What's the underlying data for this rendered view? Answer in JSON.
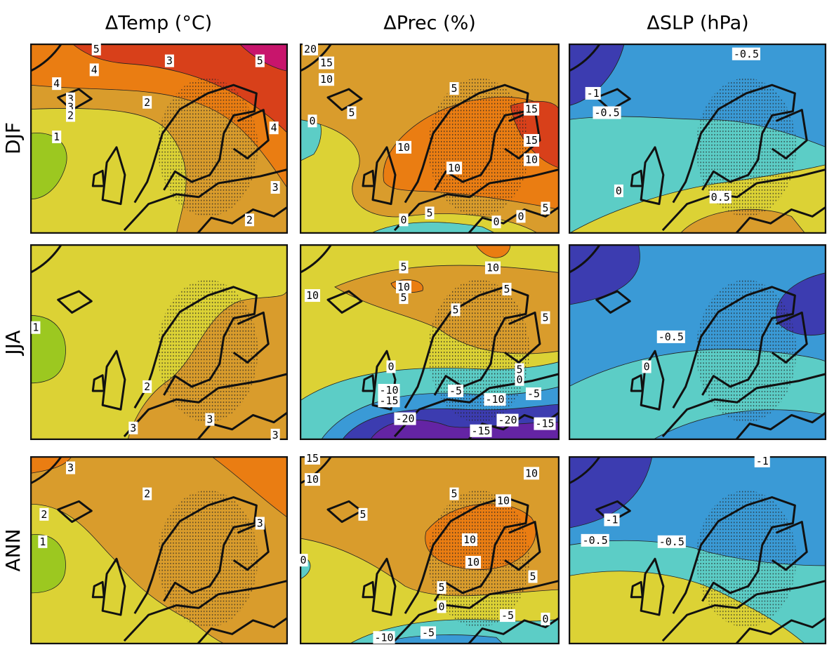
{
  "columns": [
    "ΔTemp (°C)",
    "ΔPrec (%)",
    "ΔSLP (hPa)"
  ],
  "rows": [
    "DJF",
    "JJA",
    "ANN"
  ],
  "panels": [
    [
      [
        "5",
        "3",
        "5",
        "4",
        "4",
        "3",
        "3",
        "2",
        "2",
        "1",
        "4",
        "3",
        "2"
      ],
      [
        "20",
        "15",
        "10",
        "5",
        "5",
        "0",
        "15",
        "10",
        "15",
        "10",
        "10",
        "0",
        "5",
        "0",
        "0",
        "5"
      ],
      [
        "-0.5",
        "-1",
        "-0.5",
        "0",
        "0.5"
      ]
    ],
    [
      [
        "1",
        "2",
        "3",
        "3",
        "3"
      ],
      [
        "10",
        "5",
        "10",
        "10",
        "5",
        "5",
        "5",
        "5",
        "0",
        "5",
        "0",
        "-5",
        "-10",
        "-15",
        "-5",
        "-10",
        "-20",
        "-20",
        "-15",
        "-15"
      ],
      [
        "-0.5",
        "0"
      ]
    ],
    [
      [
        "3",
        "2",
        "2",
        "1",
        "3"
      ],
      [
        "15",
        "10",
        "5",
        "5",
        "10",
        "10",
        "10",
        "5",
        "5",
        "0",
        "0",
        "-5",
        "0",
        "-10",
        "-5",
        "10"
      ],
      [
        "-1",
        "-1",
        "-0.5",
        "-0.5"
      ]
    ]
  ]
}
